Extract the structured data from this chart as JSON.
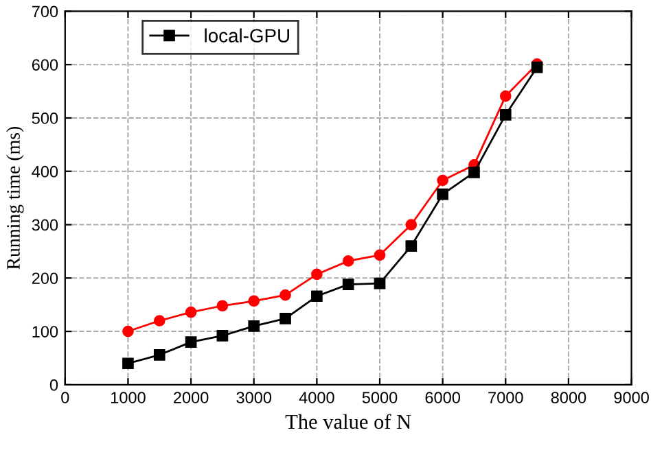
{
  "chart_data": {
    "type": "line",
    "xlabel": "The value of N",
    "ylabel": "Running time (ms)",
    "x": [
      1000,
      1500,
      2000,
      2500,
      3000,
      3500,
      4000,
      4500,
      5000,
      5500,
      6000,
      6500,
      7000,
      7500
    ],
    "series": [
      {
        "name": "local-GPU",
        "color": "#000000",
        "marker": "square",
        "values": [
          40,
          56,
          80,
          92,
          110,
          124,
          166,
          188,
          190,
          260,
          357,
          398,
          506,
          595
        ]
      },
      {
        "color": "#ff0000",
        "marker": "circle",
        "values": [
          100,
          120,
          136,
          148,
          157,
          168,
          207,
          232,
          243,
          300,
          383,
          412,
          541,
          601
        ]
      }
    ],
    "xlim": [
      0,
      9000
    ],
    "xticks": [
      0,
      1000,
      2000,
      3000,
      4000,
      5000,
      6000,
      7000,
      8000,
      9000
    ],
    "ylim": [
      0,
      700
    ],
    "yticks": [
      0,
      100,
      200,
      300,
      400,
      500,
      600,
      700
    ],
    "grid": true,
    "legend": "top left",
    "line_style": "solid"
  }
}
